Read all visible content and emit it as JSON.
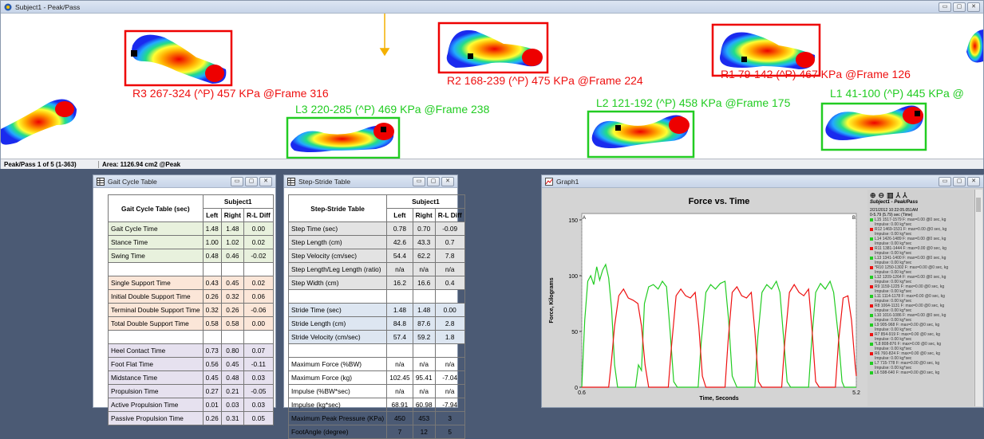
{
  "main_window": {
    "title": "Subject1 - Peak/Pass",
    "status_left": "Peak/Pass 1 of 5 (1-363)",
    "status_area": "Area: 1126.94 cm2 @Peak",
    "captions": {
      "r3": "R3 267-324 (^P) 457 KPa @Frame 316",
      "r2": "R2 168-239 (^P) 475 KPa @Frame 224",
      "r1": "R1 79-142 (^P) 467 KPa @Frame 126",
      "l3": "L3 220-285 (^P) 469 KPa @Frame 238",
      "l2": "L2 121-192 (^P) 458 KPa @Frame 175",
      "l1": "L1 41-100 (^P) 445 KPa @"
    }
  },
  "gait_table": {
    "title": "Gait Cycle Table",
    "header_label": "Gait Cycle Table (sec)",
    "subject": "Subject1",
    "cols": [
      "Left",
      "Right",
      "R-L Diff"
    ],
    "rows": [
      {
        "label": "Gait Cycle Time",
        "v": [
          "1.48",
          "1.48",
          "0.00"
        ],
        "c": "g"
      },
      {
        "label": "Stance Time",
        "v": [
          "1.00",
          "1.02",
          "0.02"
        ],
        "c": "g"
      },
      {
        "label": "Swing Time",
        "v": [
          "0.48",
          "0.46",
          "-0.02"
        ],
        "c": "g"
      },
      {
        "label": "",
        "v": [
          "",
          "",
          ""
        ],
        "c": ""
      },
      {
        "label": "Single Support Time",
        "v": [
          "0.43",
          "0.45",
          "0.02"
        ],
        "c": "o"
      },
      {
        "label": "Initial Double Support Time",
        "v": [
          "0.26",
          "0.32",
          "0.06"
        ],
        "c": "o"
      },
      {
        "label": "Terminal Double Support Time",
        "v": [
          "0.32",
          "0.26",
          "-0.06"
        ],
        "c": "o"
      },
      {
        "label": "Total Double Support Time",
        "v": [
          "0.58",
          "0.58",
          "0.00"
        ],
        "c": "o"
      },
      {
        "label": "",
        "v": [
          "",
          "",
          ""
        ],
        "c": ""
      },
      {
        "label": "Heel Contact Time",
        "v": [
          "0.73",
          "0.80",
          "0.07"
        ],
        "c": "p"
      },
      {
        "label": "Foot Flat Time",
        "v": [
          "0.56",
          "0.45",
          "-0.11"
        ],
        "c": "p"
      },
      {
        "label": "Midstance Time",
        "v": [
          "0.45",
          "0.48",
          "0.03"
        ],
        "c": "p"
      },
      {
        "label": "Propulsion Time",
        "v": [
          "0.27",
          "0.21",
          "-0.05"
        ],
        "c": "p"
      },
      {
        "label": "Active Propulsion Time",
        "v": [
          "0.01",
          "0.03",
          "0.03"
        ],
        "c": "p"
      },
      {
        "label": "Passive Propulsion Time",
        "v": [
          "0.26",
          "0.31",
          "0.05"
        ],
        "c": "p"
      }
    ]
  },
  "step_table": {
    "title": "Step-Stride Table",
    "header_label": "Step-Stride Table",
    "subject": "Subject1",
    "cols": [
      "Left",
      "Right",
      "R-L Diff"
    ],
    "rows": [
      {
        "label": "Step Time (sec)",
        "v": [
          "0.78",
          "0.70",
          "-0.09"
        ],
        "c": "gr"
      },
      {
        "label": "Step Length (cm)",
        "v": [
          "42.6",
          "43.3",
          "0.7"
        ],
        "c": "gr"
      },
      {
        "label": "Step Velocity (cm/sec)",
        "v": [
          "54.4",
          "62.2",
          "7.8"
        ],
        "c": "gr"
      },
      {
        "label": "Step Length/Leg Length (ratio)",
        "v": [
          "n/a",
          "n/a",
          "n/a"
        ],
        "c": "gr"
      },
      {
        "label": "Step Width (cm)",
        "v": [
          "16.2",
          "16.6",
          "0.4"
        ],
        "c": "gr"
      },
      {
        "label": "",
        "v": [
          "",
          "",
          ""
        ],
        "c": ""
      },
      {
        "label": "Stride Time (sec)",
        "v": [
          "1.48",
          "1.48",
          "0.00"
        ],
        "c": "b"
      },
      {
        "label": "Stride Length (cm)",
        "v": [
          "84.8",
          "87.6",
          "2.8"
        ],
        "c": "b"
      },
      {
        "label": "Stride Velocity (cm/sec)",
        "v": [
          "57.4",
          "59.2",
          "1.8"
        ],
        "c": "b"
      },
      {
        "label": "",
        "v": [
          "",
          "",
          ""
        ],
        "c": ""
      },
      {
        "label": "Maximum Force (%BW)",
        "v": [
          "n/a",
          "n/a",
          "n/a"
        ],
        "c": ""
      },
      {
        "label": "Maximum Force (kg)",
        "v": [
          "102.45",
          "95.41",
          "-7.04"
        ],
        "c": ""
      },
      {
        "label": "Impulse (%BW*sec)",
        "v": [
          "n/a",
          "n/a",
          "n/a"
        ],
        "c": ""
      },
      {
        "label": "Impulse (kg*sec)",
        "v": [
          "68.91",
          "60.98",
          "-7.94"
        ],
        "c": ""
      },
      {
        "label": "Maximum Peak Pressure (KPa)",
        "v": [
          "450",
          "453",
          "3"
        ],
        "c": ""
      },
      {
        "label": "FootAngle (degree)",
        "v": [
          "7",
          "12",
          "5"
        ],
        "c": ""
      }
    ]
  },
  "graph": {
    "window_title": "Graph1",
    "legend_title": "Subject1 - Peak/Pass",
    "legend_date": "2/21/2012 10:22:05.051AM",
    "legend_range": "0-5.79 (5.79) sec (Time)",
    "legend_items": [
      {
        "text": "L15 1517-1579 F: max=0.00 @0 sec, kg",
        "color": "#22cc22"
      },
      {
        "text": "Impulse: 0.00 kg*sec",
        "color": ""
      },
      {
        "text": "R12 1469-1531 F: max=0.00 @0 sec, kg",
        "color": "#ee1111"
      },
      {
        "text": "Impulse: 0.00 kg*sec",
        "color": ""
      },
      {
        "text": "L14 1426-1489 F: max=0.00 @0 sec, kg",
        "color": "#22cc22"
      },
      {
        "text": "Impulse: 0.00 kg*sec",
        "color": ""
      },
      {
        "text": "R11 1381-1444 F: max=0.00 @0 sec, kg",
        "color": "#ee1111"
      },
      {
        "text": "Impulse: 0.00 kg*sec",
        "color": ""
      },
      {
        "text": "L13 1341-1400 F: max=0.00 @0 sec, kg",
        "color": "#22cc22"
      },
      {
        "text": "Impulse: 0.00 kg*sec",
        "color": ""
      },
      {
        "text": "*R10 1250-1302 F: max=0.00 @0 sec, kg",
        "color": "#ee1111"
      },
      {
        "text": "Impulse: 0.00 kg*sec",
        "color": ""
      },
      {
        "text": "L12 1209-1264 F: max=0.00 @0 sec, kg",
        "color": "#22cc22"
      },
      {
        "text": "Impulse: 0.00 kg*sec",
        "color": ""
      },
      {
        "text": "R9 1159-1225 F: max=0.00 @0 sec, kg",
        "color": "#ee1111"
      },
      {
        "text": "Impulse: 0.00 kg*sec",
        "color": ""
      },
      {
        "text": "L11 1114-1178 F: max=0.00 @0 sec, kg",
        "color": "#22cc22"
      },
      {
        "text": "Impulse: 0.00 kg*sec",
        "color": ""
      },
      {
        "text": "R8 1064-1131 F: max=0.00 @0 sec, kg",
        "color": "#ee1111"
      },
      {
        "text": "Impulse: 0.00 kg*sec",
        "color": ""
      },
      {
        "text": "L10 1016-1086 F: max=0.00 @0 sec, kg",
        "color": "#22cc22"
      },
      {
        "text": "Impulse: 0.00 kg*sec",
        "color": ""
      },
      {
        "text": "L9 905-968 F: max=0.00 @0 sec, kg",
        "color": "#22cc22"
      },
      {
        "text": "Impulse: 0.00 kg*sec",
        "color": ""
      },
      {
        "text": "R7 854-919 F: max=0.00 @0 sec, kg",
        "color": "#ee1111"
      },
      {
        "text": "Impulse: 0.00 kg*sec",
        "color": ""
      },
      {
        "text": "*L8 808-876 F: max=0.00 @0 sec, kg",
        "color": "#22cc22"
      },
      {
        "text": "Impulse: 0.00 kg*sec",
        "color": ""
      },
      {
        "text": "R6 760-824 F: max=0.00 @0 sec, kg",
        "color": "#ee1111"
      },
      {
        "text": "Impulse: 0.00 kg*sec",
        "color": ""
      },
      {
        "text": "L7 715-778 F: max=0.00 @0 sec, kg",
        "color": "#22cc22"
      },
      {
        "text": "Impulse: 0.00 kg*sec",
        "color": ""
      },
      {
        "text": "L6 598-640 F: max=0.00 @0 sec, kg",
        "color": "#22cc22"
      }
    ]
  },
  "chart_data": {
    "type": "line",
    "title": "Force vs. Time",
    "xlabel": "Time, Seconds",
    "ylabel": "Force, Kilograms",
    "xlim": [
      0.6,
      5.2
    ],
    "ylim": [
      0,
      150
    ],
    "x_tick_labels": [
      "0.6",
      "5.2"
    ],
    "y_ticks": [
      0,
      50,
      100,
      150
    ],
    "cursor_labels": [
      "A",
      "B"
    ],
    "series": [
      {
        "color": "#22cc22",
        "points": [
          [
            0.6,
            0
          ],
          [
            0.65,
            60
          ],
          [
            0.7,
            95
          ],
          [
            0.75,
            100
          ],
          [
            0.8,
            92
          ],
          [
            0.85,
            108
          ],
          [
            0.9,
            96
          ],
          [
            0.95,
            105
          ],
          [
            1.0,
            110
          ],
          [
            1.05,
            98
          ],
          [
            1.1,
            70
          ],
          [
            1.15,
            20
          ],
          [
            1.2,
            0
          ],
          [
            1.5,
            0
          ],
          [
            1.55,
            20
          ],
          [
            1.6,
            15
          ],
          [
            1.65,
            75
          ],
          [
            1.72,
            90
          ],
          [
            1.8,
            92
          ],
          [
            1.88,
            88
          ],
          [
            1.95,
            95
          ],
          [
            2.02,
            90
          ],
          [
            2.08,
            50
          ],
          [
            2.14,
            5
          ],
          [
            2.2,
            0
          ],
          [
            2.55,
            0
          ],
          [
            2.6,
            40
          ],
          [
            2.68,
            85
          ],
          [
            2.76,
            92
          ],
          [
            2.84,
            88
          ],
          [
            2.92,
            93
          ],
          [
            3.0,
            95
          ],
          [
            3.06,
            60
          ],
          [
            3.12,
            10
          ],
          [
            3.2,
            0
          ],
          [
            3.5,
            0
          ],
          [
            3.55,
            45
          ],
          [
            3.62,
            85
          ],
          [
            3.7,
            92
          ],
          [
            3.78,
            88
          ],
          [
            3.86,
            95
          ],
          [
            3.92,
            85
          ],
          [
            3.98,
            45
          ],
          [
            4.04,
            5
          ],
          [
            4.1,
            0
          ],
          [
            4.4,
            0
          ],
          [
            4.45,
            40
          ],
          [
            4.52,
            85
          ],
          [
            4.6,
            93
          ],
          [
            4.68,
            88
          ],
          [
            4.76,
            95
          ],
          [
            4.82,
            85
          ],
          [
            4.9,
            45
          ],
          [
            4.96,
            5
          ],
          [
            5.0,
            0
          ],
          [
            5.2,
            0
          ]
        ]
      },
      {
        "color": "#ee1111",
        "points": [
          [
            0.6,
            0
          ],
          [
            1.05,
            0
          ],
          [
            1.1,
            25
          ],
          [
            1.15,
            55
          ],
          [
            1.22,
            82
          ],
          [
            1.3,
            88
          ],
          [
            1.38,
            80
          ],
          [
            1.46,
            78
          ],
          [
            1.54,
            75
          ],
          [
            1.6,
            55
          ],
          [
            1.66,
            20
          ],
          [
            1.72,
            0
          ],
          [
            2.05,
            0
          ],
          [
            2.1,
            35
          ],
          [
            2.18,
            82
          ],
          [
            2.26,
            88
          ],
          [
            2.34,
            82
          ],
          [
            2.42,
            80
          ],
          [
            2.5,
            85
          ],
          [
            2.56,
            55
          ],
          [
            2.62,
            10
          ],
          [
            2.68,
            0
          ],
          [
            3.0,
            0
          ],
          [
            3.05,
            40
          ],
          [
            3.12,
            85
          ],
          [
            3.2,
            90
          ],
          [
            3.28,
            82
          ],
          [
            3.36,
            80
          ],
          [
            3.44,
            85
          ],
          [
            3.5,
            50
          ],
          [
            3.56,
            5
          ],
          [
            3.62,
            0
          ],
          [
            3.95,
            0
          ],
          [
            4.0,
            40
          ],
          [
            4.08,
            85
          ],
          [
            4.16,
            92
          ],
          [
            4.24,
            85
          ],
          [
            4.32,
            82
          ],
          [
            4.4,
            88
          ],
          [
            4.46,
            50
          ],
          [
            4.52,
            5
          ],
          [
            4.58,
            0
          ],
          [
            4.85,
            0
          ],
          [
            4.9,
            40
          ],
          [
            4.98,
            80
          ],
          [
            5.06,
            82
          ],
          [
            5.12,
            60
          ],
          [
            5.18,
            20
          ],
          [
            5.2,
            10
          ]
        ]
      }
    ]
  }
}
